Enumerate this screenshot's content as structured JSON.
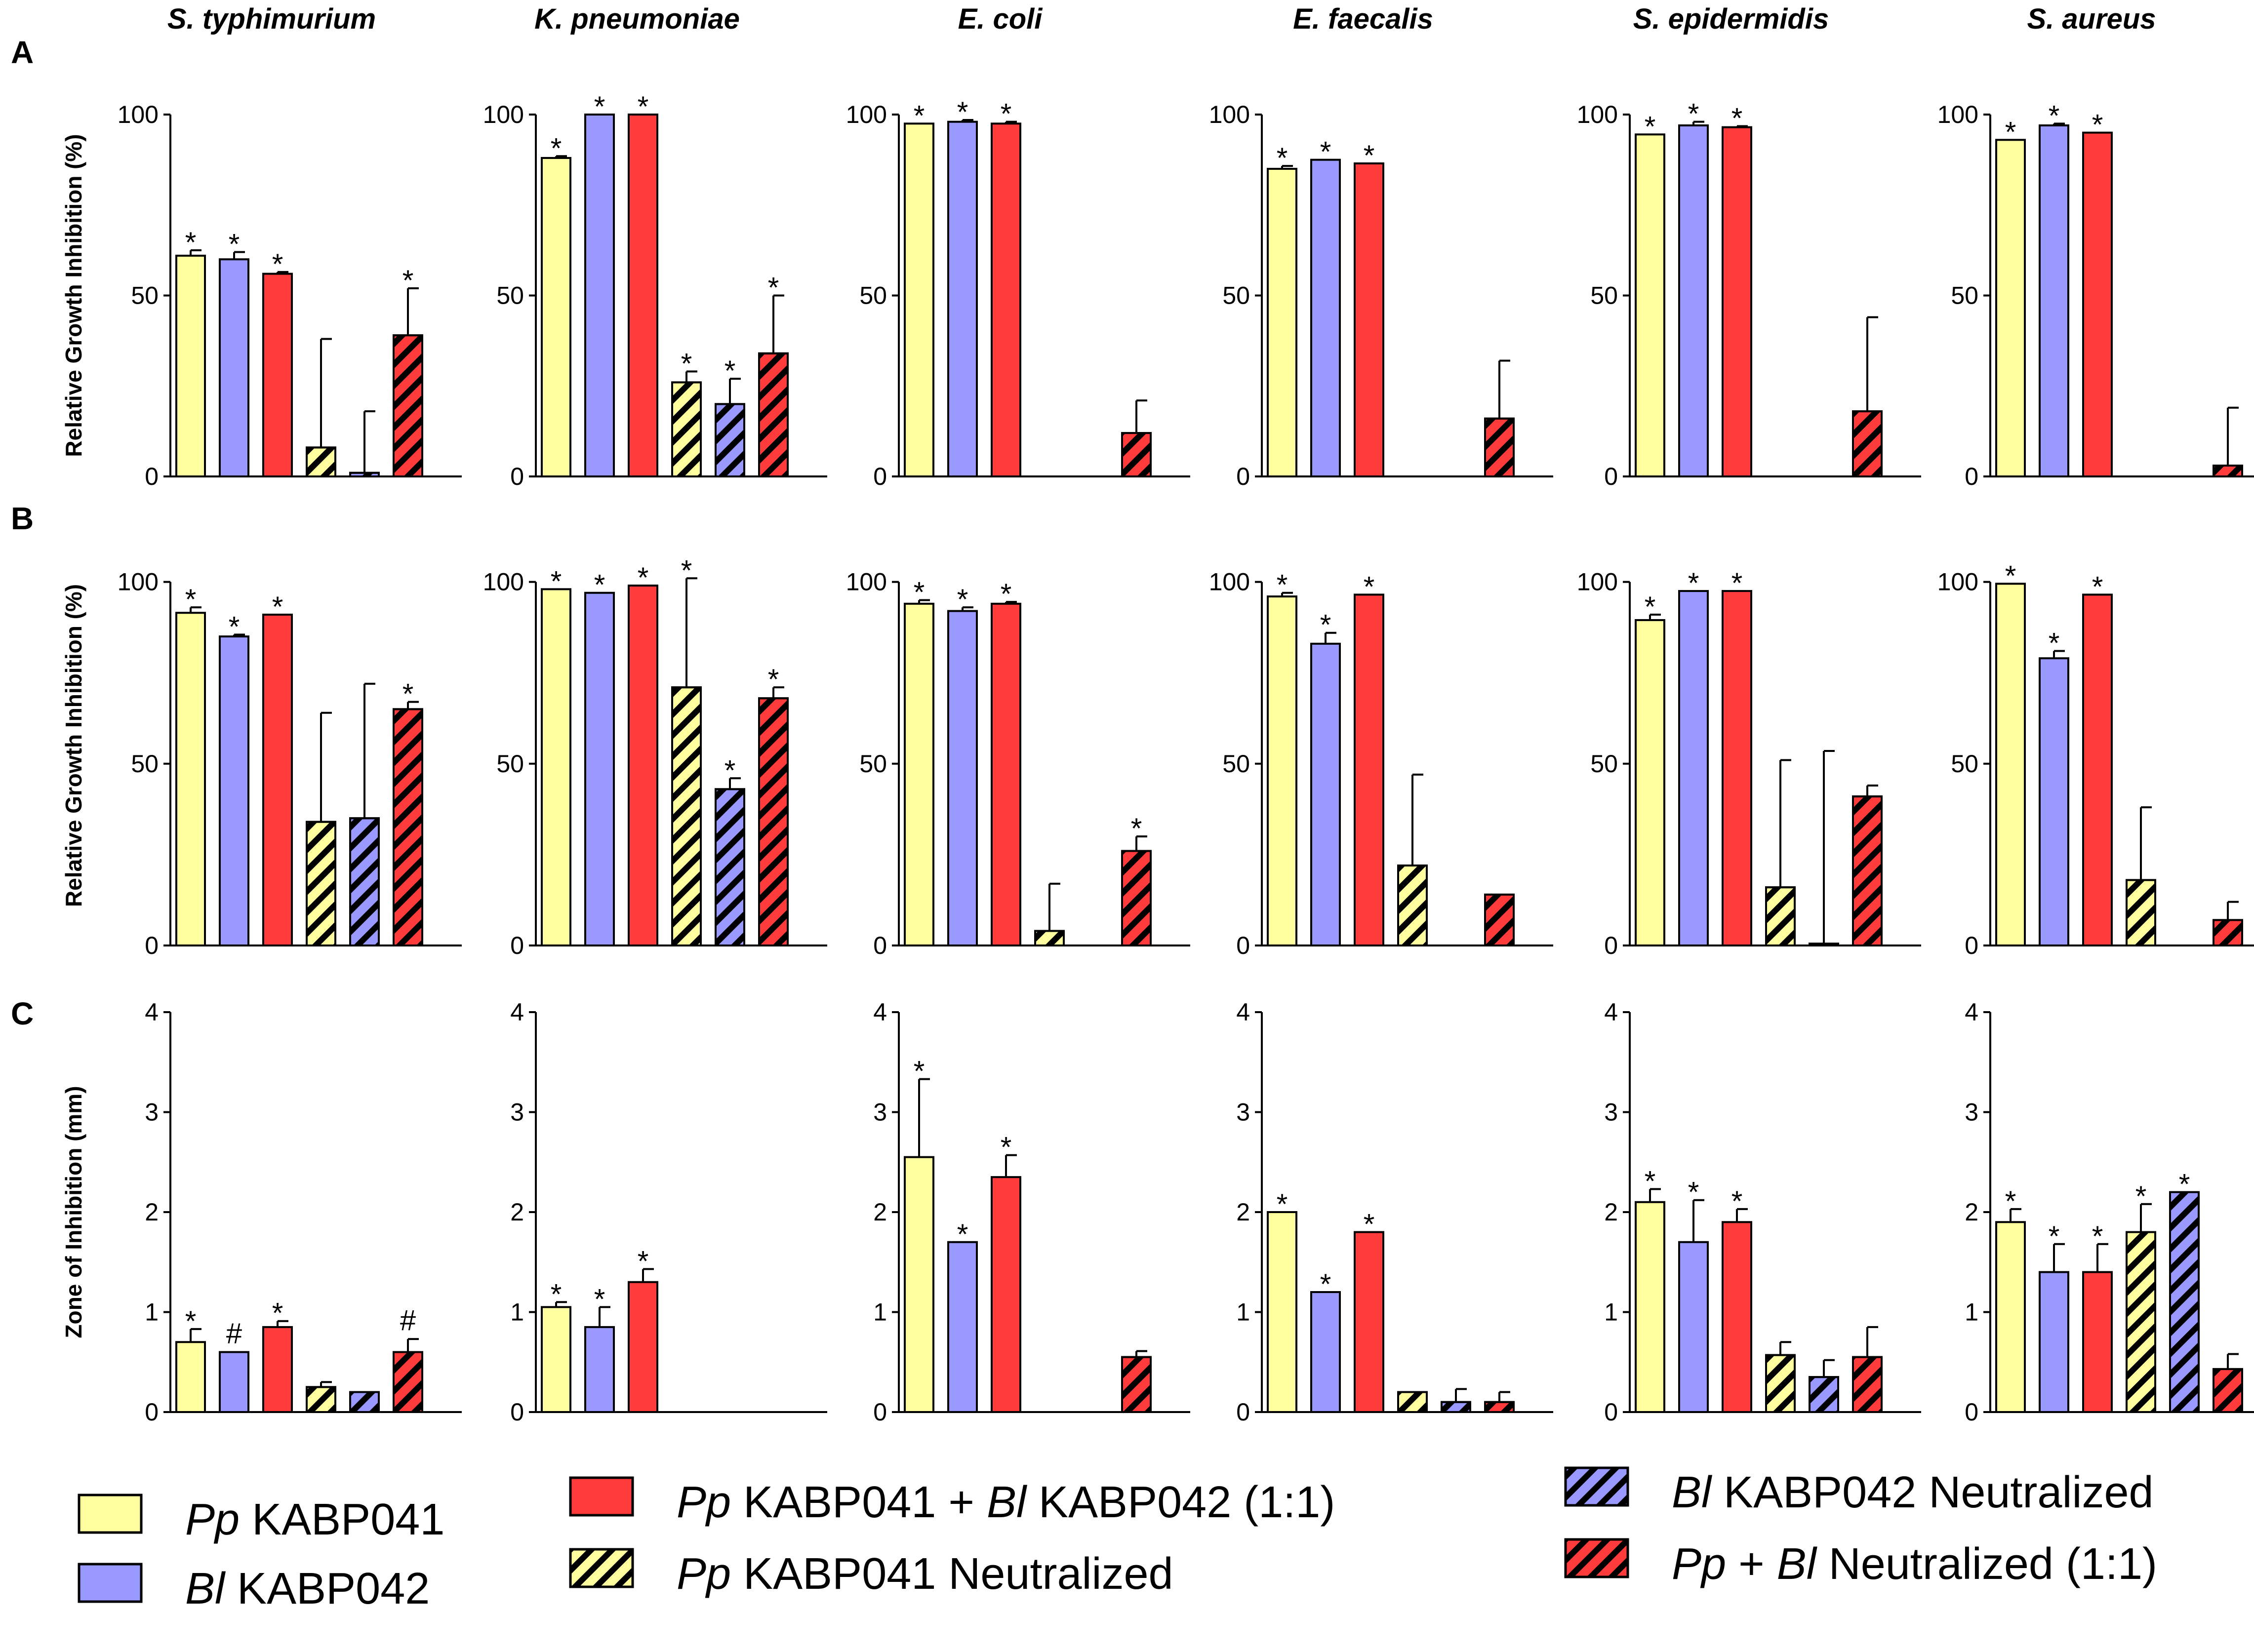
{
  "colors": {
    "pp": "#FFFFA0",
    "bl": "#9999FF",
    "mix": "#FF3B3B",
    "stroke": "#000000"
  },
  "chart_data": {
    "type": "bar",
    "species": [
      "S. typhimurium",
      "K. pneumoniae",
      "E. coli",
      "E. faecalis",
      "S. epidermidis",
      "S. aureus"
    ],
    "groups": [
      {
        "key": "pp",
        "legend_italic": "Pp",
        "legend_rest": " KABP041",
        "color": "pp",
        "hatched": false
      },
      {
        "key": "bl",
        "legend_italic": "Bl",
        "legend_rest": " KABP042",
        "color": "bl",
        "hatched": false
      },
      {
        "key": "mix",
        "legend_parts": [
          {
            "t": "Pp",
            "i": true
          },
          {
            "t": " KABP041 + ",
            "i": false
          },
          {
            "t": "Bl",
            "i": true
          },
          {
            "t": " KABP042 (1:1)",
            "i": false
          }
        ],
        "color": "mix",
        "hatched": false
      },
      {
        "key": "ppn",
        "legend_italic": "Pp",
        "legend_rest": " KABP041 Neutralized",
        "color": "pp",
        "hatched": true
      },
      {
        "key": "bln",
        "legend_italic": "Bl",
        "legend_rest": " KABP042 Neutralized",
        "color": "bl",
        "hatched": true
      },
      {
        "key": "mixn",
        "legend_parts": [
          {
            "t": "Pp",
            "i": true
          },
          {
            "t": " + ",
            "i": false
          },
          {
            "t": "Bl",
            "i": true
          },
          {
            "t": "  Neutralized (1:1)",
            "i": false
          }
        ],
        "color": "mix",
        "hatched": true
      }
    ],
    "panels": [
      {
        "label": "A",
        "ylabel": "Relative Growth Inhibition (%)",
        "ylim": [
          0,
          100
        ],
        "yticks": [
          "0",
          "50",
          "100"
        ],
        "ytick_values": [
          0,
          50,
          100
        ],
        "series": [
          [
            {
              "v": 61,
              "e": 1.5,
              "s": "*"
            },
            {
              "v": 60,
              "e": 2,
              "s": "*"
            },
            {
              "v": 56,
              "e": 0.5,
              "s": "*"
            },
            {
              "v": 8,
              "e": 30,
              "s": ""
            },
            {
              "v": 1,
              "e": 17,
              "s": ""
            },
            {
              "v": 39,
              "e": 13,
              "s": "*"
            }
          ],
          [
            {
              "v": 88,
              "e": 0.5,
              "s": "*"
            },
            {
              "v": 100,
              "e": 0,
              "s": "*"
            },
            {
              "v": 100,
              "e": 0,
              "s": "*"
            },
            {
              "v": 26,
              "e": 3,
              "s": "*"
            },
            {
              "v": 20,
              "e": 7,
              "s": "*"
            },
            {
              "v": 34,
              "e": 16,
              "s": "*"
            }
          ],
          [
            {
              "v": 97.5,
              "e": 0,
              "s": "*"
            },
            {
              "v": 98,
              "e": 0.5,
              "s": "*"
            },
            {
              "v": 97.5,
              "e": 0.5,
              "s": "*"
            },
            null,
            null,
            {
              "v": 12,
              "e": 9,
              "s": ""
            }
          ],
          [
            {
              "v": 85,
              "e": 0.8,
              "s": "*"
            },
            {
              "v": 87.5,
              "e": 0,
              "s": "*"
            },
            {
              "v": 86.5,
              "e": 0,
              "s": "*"
            },
            null,
            null,
            {
              "v": 16,
              "e": 16,
              "s": ""
            }
          ],
          [
            {
              "v": 94.5,
              "e": 0,
              "s": "*"
            },
            {
              "v": 97,
              "e": 1,
              "s": "*"
            },
            {
              "v": 96.5,
              "e": 0.3,
              "s": "*"
            },
            null,
            null,
            {
              "v": 18,
              "e": 26,
              "s": ""
            }
          ],
          [
            {
              "v": 93,
              "e": 0,
              "s": "*"
            },
            {
              "v": 97,
              "e": 0.5,
              "s": "*"
            },
            {
              "v": 95,
              "e": 0,
              "s": "*"
            },
            null,
            null,
            {
              "v": 3,
              "e": 16,
              "s": ""
            }
          ]
        ]
      },
      {
        "label": "B",
        "ylabel": "Relative Growth Inhibition (%)",
        "ylim": [
          0,
          110
        ],
        "yticks": [
          "0",
          "50",
          "100"
        ],
        "ytick_values": [
          0,
          50,
          100
        ],
        "series": [
          [
            {
              "v": 91.5,
              "e": 1.5,
              "s": "*"
            },
            {
              "v": 85,
              "e": 0.5,
              "s": "*"
            },
            {
              "v": 91,
              "e": 0,
              "s": "*"
            },
            {
              "v": 34,
              "e": 30,
              "s": ""
            },
            {
              "v": 35,
              "e": 37,
              "s": ""
            },
            {
              "v": 65,
              "e": 2,
              "s": "*"
            }
          ],
          [
            {
              "v": 98,
              "e": 0,
              "s": "*"
            },
            {
              "v": 97,
              "e": 0,
              "s": "*"
            },
            {
              "v": 99,
              "e": 0,
              "s": "*"
            },
            {
              "v": 71,
              "e": 30,
              "s": "*"
            },
            {
              "v": 43,
              "e": 3,
              "s": "*"
            },
            {
              "v": 68,
              "e": 3,
              "s": "*"
            }
          ],
          [
            {
              "v": 94,
              "e": 1,
              "s": "*"
            },
            {
              "v": 92,
              "e": 1,
              "s": "*"
            },
            {
              "v": 94,
              "e": 0.5,
              "s": "*"
            },
            {
              "v": 4,
              "e": 13,
              "s": ""
            },
            null,
            {
              "v": 26,
              "e": 4,
              "s": "*"
            }
          ],
          [
            {
              "v": 96,
              "e": 1,
              "s": "*"
            },
            {
              "v": 83,
              "e": 3,
              "s": "*"
            },
            {
              "v": 96.5,
              "e": 0,
              "s": "*"
            },
            {
              "v": 22,
              "e": 25,
              "s": ""
            },
            null,
            {
              "v": 14,
              "e": 0,
              "s": ""
            }
          ],
          [
            {
              "v": 89.5,
              "e": 1.5,
              "s": "*"
            },
            {
              "v": 97.5,
              "e": 0,
              "s": "*"
            },
            {
              "v": 97.5,
              "e": 0,
              "s": "*"
            },
            {
              "v": 16,
              "e": 35,
              "s": ""
            },
            {
              "v": 0.5,
              "e": 53,
              "s": ""
            },
            {
              "v": 41,
              "e": 3,
              "s": ""
            }
          ],
          [
            {
              "v": 99.5,
              "e": 0,
              "s": "*"
            },
            {
              "v": 79,
              "e": 2,
              "s": "*"
            },
            {
              "v": 96.5,
              "e": 0,
              "s": "*"
            },
            {
              "v": 18,
              "e": 20,
              "s": ""
            },
            null,
            {
              "v": 7,
              "e": 5,
              "s": ""
            }
          ]
        ]
      },
      {
        "label": "C",
        "ylabel": "Zone of Inhibition (mm)",
        "ylim": [
          0,
          4
        ],
        "yticks": [
          "0",
          "1",
          "2",
          "3",
          "4"
        ],
        "ytick_values": [
          0,
          1,
          2,
          3,
          4
        ],
        "series": [
          [
            {
              "v": 0.7,
              "e": 0.13,
              "s": "*"
            },
            {
              "v": 0.6,
              "e": 0,
              "s": "#"
            },
            {
              "v": 0.85,
              "e": 0.06,
              "s": "*"
            },
            {
              "v": 0.25,
              "e": 0.05,
              "s": ""
            },
            {
              "v": 0.2,
              "e": 0,
              "s": ""
            },
            {
              "v": 0.6,
              "e": 0.13,
              "s": "#"
            }
          ],
          [
            {
              "v": 1.05,
              "e": 0.05,
              "s": "*"
            },
            {
              "v": 0.85,
              "e": 0.2,
              "s": "*"
            },
            {
              "v": 1.3,
              "e": 0.13,
              "s": "*"
            },
            null,
            null,
            null
          ],
          [
            {
              "v": 2.55,
              "e": 0.78,
              "s": "*"
            },
            {
              "v": 1.7,
              "e": 0,
              "s": "*"
            },
            {
              "v": 2.35,
              "e": 0.22,
              "s": "*"
            },
            null,
            null,
            {
              "v": 0.55,
              "e": 0.06,
              "s": ""
            }
          ],
          [
            {
              "v": 2.0,
              "e": 0,
              "s": "*"
            },
            {
              "v": 1.2,
              "e": 0,
              "s": "*"
            },
            {
              "v": 1.8,
              "e": 0,
              "s": "*"
            },
            {
              "v": 0.2,
              "e": 0,
              "s": ""
            },
            {
              "v": 0.1,
              "e": 0.13,
              "s": ""
            },
            {
              "v": 0.1,
              "e": 0.1,
              "s": ""
            }
          ],
          [
            {
              "v": 2.1,
              "e": 0.13,
              "s": "*"
            },
            {
              "v": 1.7,
              "e": 0.42,
              "s": "*"
            },
            {
              "v": 1.9,
              "e": 0.13,
              "s": "*"
            },
            {
              "v": 0.57,
              "e": 0.13,
              "s": ""
            },
            {
              "v": 0.35,
              "e": 0.17,
              "s": ""
            },
            {
              "v": 0.55,
              "e": 0.3,
              "s": ""
            }
          ],
          [
            {
              "v": 1.9,
              "e": 0.13,
              "s": "*"
            },
            {
              "v": 1.4,
              "e": 0.28,
              "s": "*"
            },
            {
              "v": 1.4,
              "e": 0.28,
              "s": "*"
            },
            {
              "v": 1.8,
              "e": 0.28,
              "s": "*"
            },
            {
              "v": 2.2,
              "e": 0,
              "s": "*"
            },
            {
              "v": 0.43,
              "e": 0.15,
              "s": ""
            }
          ]
        ]
      }
    ]
  }
}
